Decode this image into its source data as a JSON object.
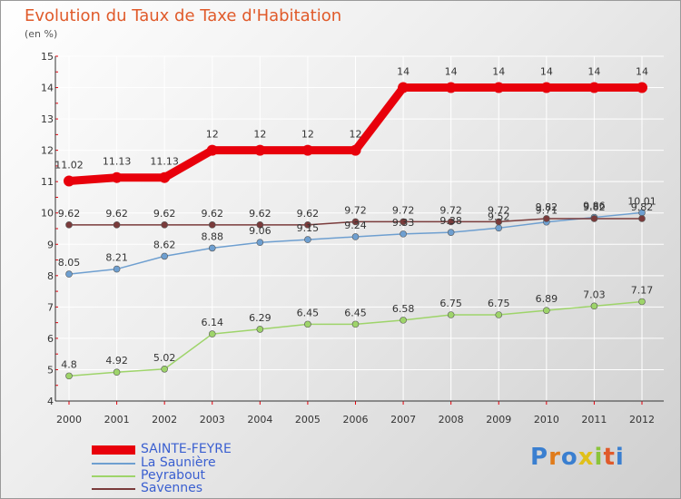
{
  "title": "Evolution du Taux de Taxe d'Habitation",
  "unit": "(en %)",
  "logo": "Proxiti",
  "chart_data": {
    "type": "line",
    "title": "Evolution du Taux de Taxe d'Habitation",
    "ylabel": "(en %)",
    "xlabel": "",
    "ylim": [
      4,
      15
    ],
    "yticks": [
      "4",
      "5",
      "6",
      "7",
      "8",
      "9",
      "10",
      "11",
      "12",
      "13",
      "14",
      "15"
    ],
    "categories": [
      "2000",
      "2001",
      "2002",
      "2003",
      "2004",
      "2005",
      "2006",
      "2007",
      "2008",
      "2009",
      "2010",
      "2011",
      "2012"
    ],
    "series": [
      {
        "name": "SAINTE-FEYRE",
        "color": "#e8000b",
        "values": [
          11.02,
          11.13,
          11.13,
          12,
          12,
          12,
          12,
          14,
          14,
          14,
          14,
          14,
          14
        ],
        "labels": [
          "11.02",
          "11.13",
          "11.13",
          "12",
          "12",
          "12",
          "12",
          "14",
          "14",
          "14",
          "14",
          "14",
          "14"
        ]
      },
      {
        "name": "La Saunière",
        "color": "#6e9fd0",
        "values": [
          8.05,
          8.21,
          8.62,
          8.88,
          9.06,
          9.15,
          9.24,
          9.33,
          9.38,
          9.52,
          9.71,
          9.86,
          10.01
        ],
        "labels": [
          "8.05",
          "8.21",
          "8.62",
          "8.88",
          "9.06",
          "9.15",
          "9.24",
          "9.33",
          "9.38",
          "9.52",
          "9.71",
          "9.86",
          "10.01"
        ]
      },
      {
        "name": "Peyrabout",
        "color": "#9ed46a",
        "values": [
          4.8,
          4.92,
          5.02,
          6.14,
          6.29,
          6.45,
          6.45,
          6.58,
          6.75,
          6.75,
          6.89,
          7.03,
          7.17
        ],
        "labels": [
          "4.8",
          "4.92",
          "5.02",
          "6.14",
          "6.29",
          "6.45",
          "6.45",
          "6.58",
          "6.75",
          "6.75",
          "6.89",
          "7.03",
          "7.17"
        ]
      },
      {
        "name": "Savennes",
        "color": "#7a3b3b",
        "values": [
          9.62,
          9.62,
          9.62,
          9.62,
          9.62,
          9.62,
          9.72,
          9.72,
          9.72,
          9.72,
          9.82,
          9.82,
          9.82
        ],
        "labels": [
          "9.62",
          "9.62",
          "9.62",
          "9.62",
          "9.62",
          "9.62",
          "9.72",
          "9.72",
          "9.72",
          "9.72",
          "9.82",
          "9.82",
          "9.82"
        ]
      }
    ]
  }
}
